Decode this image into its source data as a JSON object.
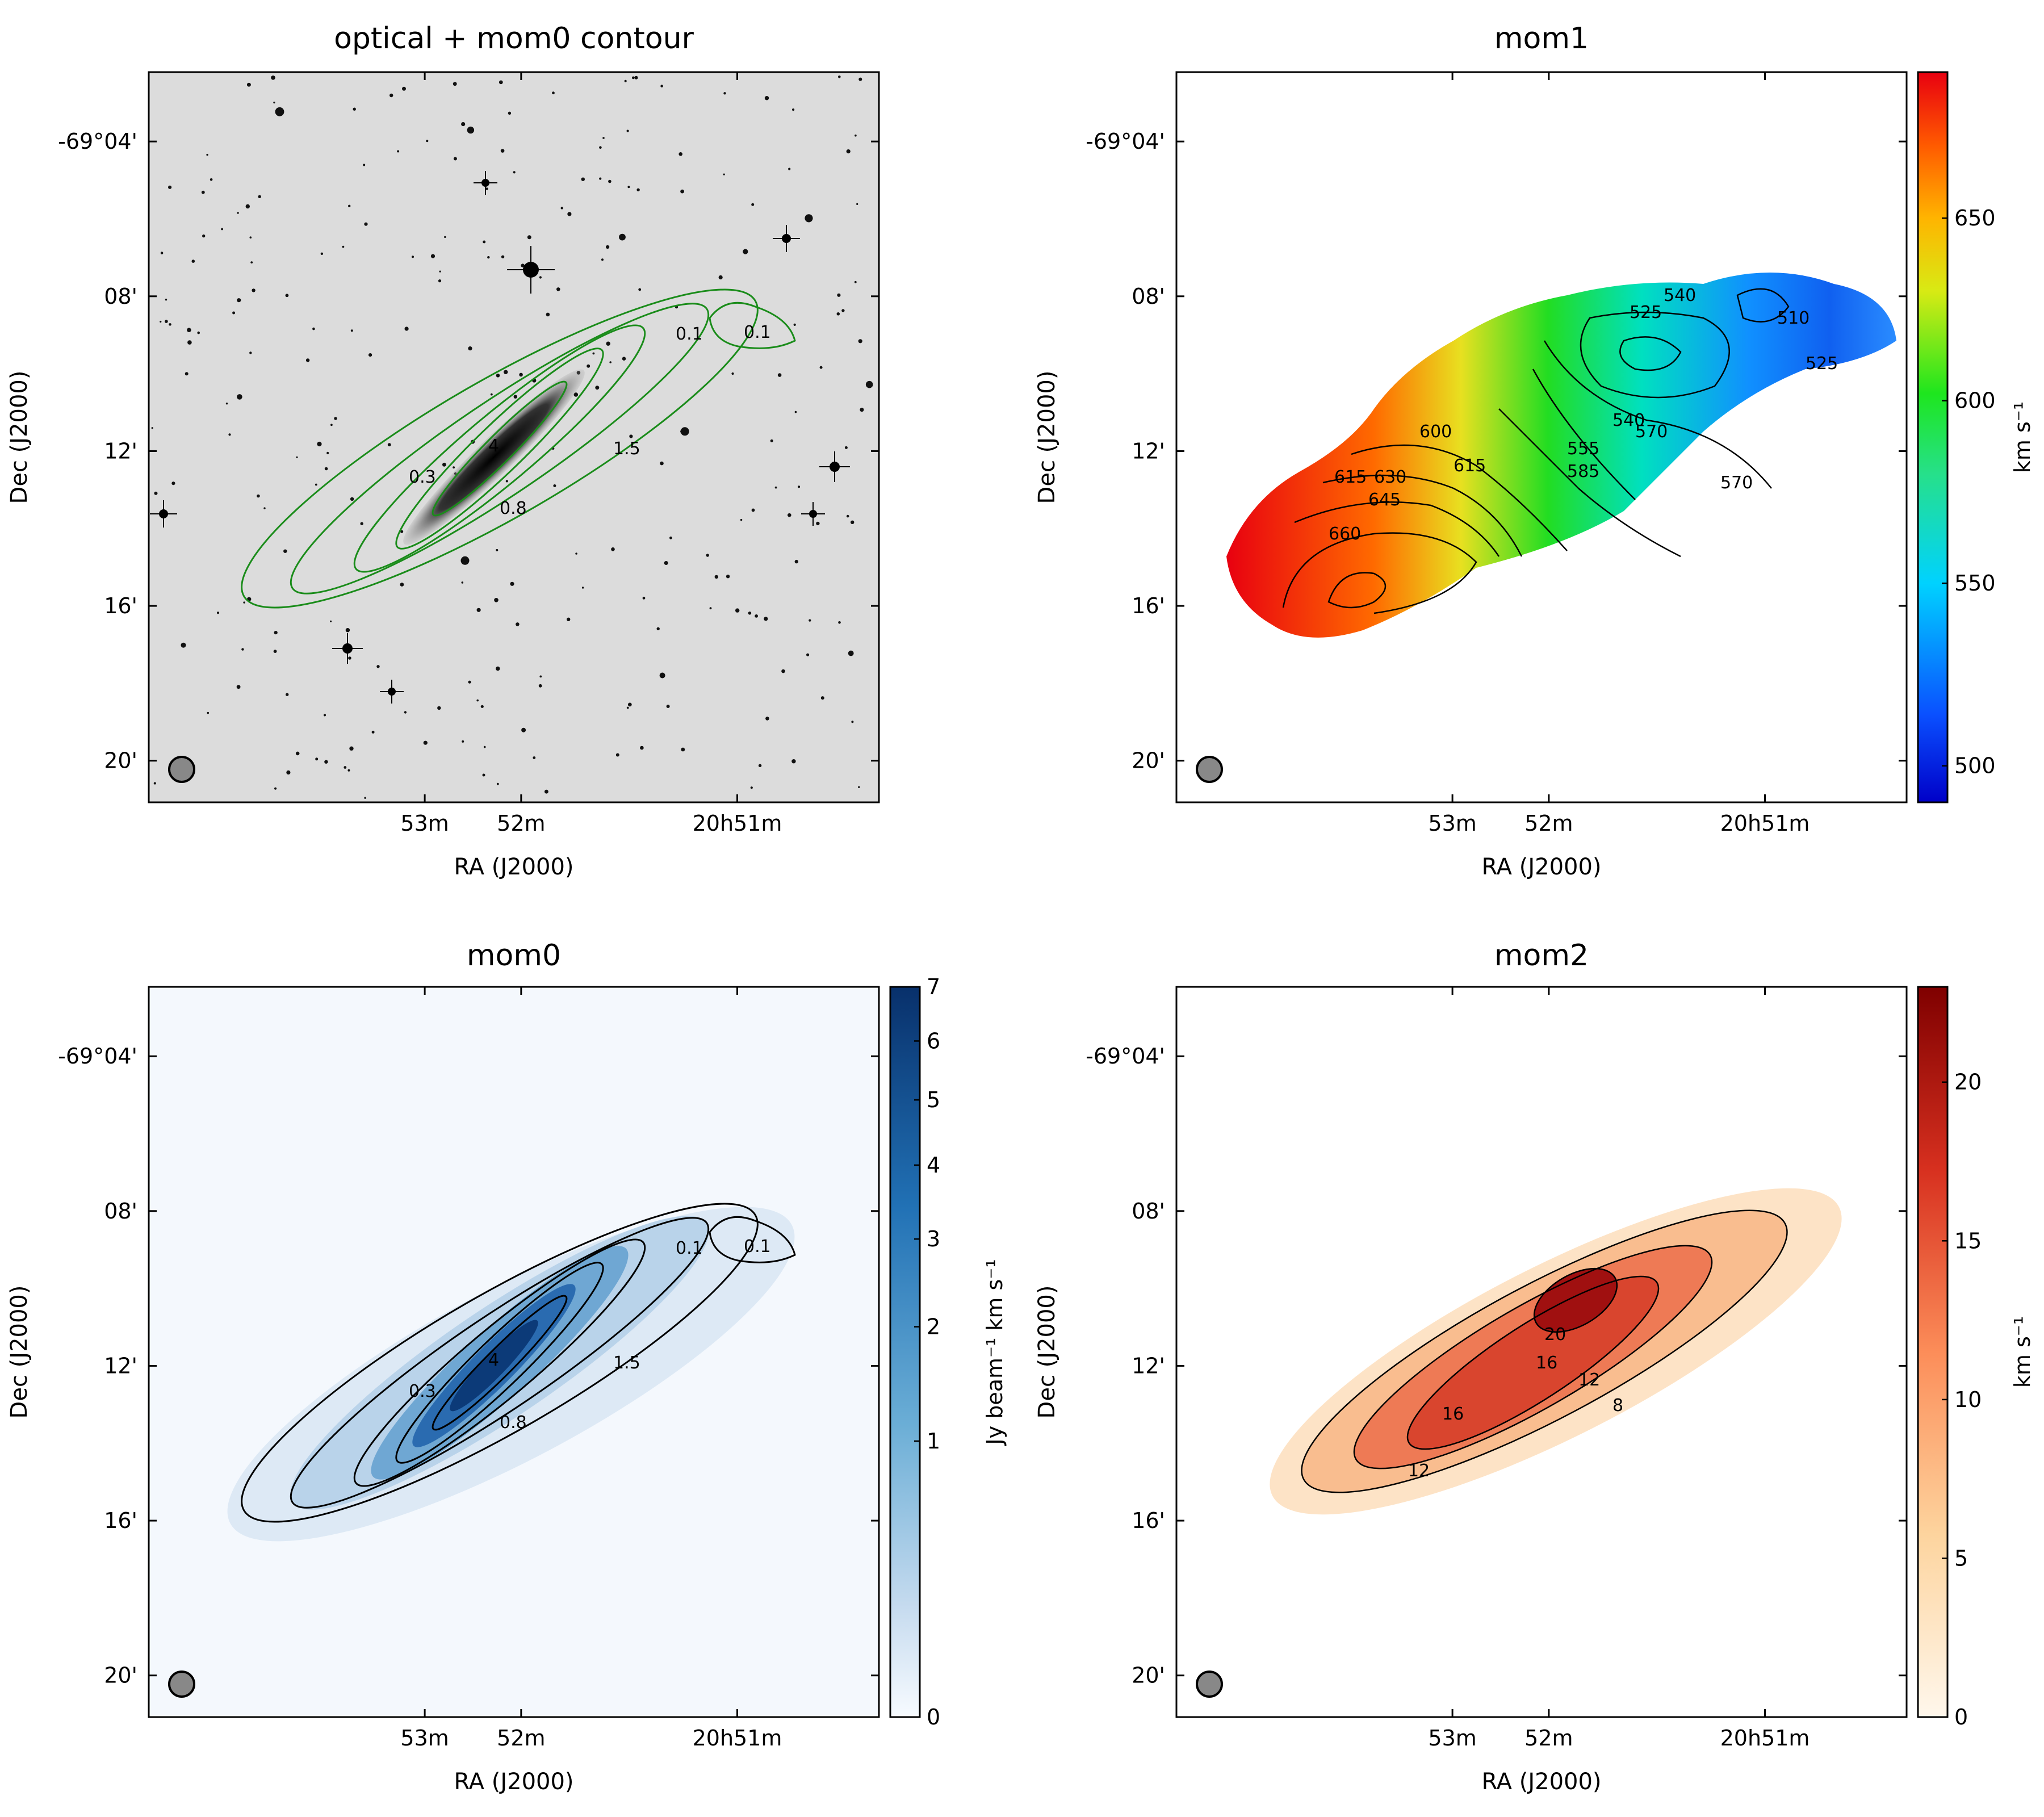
{
  "figure": {
    "panels": [
      {
        "id": "optical",
        "title": "optical + mom0 contour",
        "xlabel": "RA (J2000)",
        "ylabel": "Dec (J2000)",
        "xticks": [
          "53m",
          "52m",
          "20h51m"
        ],
        "yticks": [
          "-69°04'",
          "08'",
          "12'",
          "16'",
          "20'"
        ],
        "contour_color": "#1a8c1a",
        "contour_labels": [
          "0.1",
          "0.1",
          "0.3",
          "4",
          "0.8",
          "1.5"
        ]
      },
      {
        "id": "mom1",
        "title": "mom1",
        "xlabel": "RA (J2000)",
        "ylabel": "Dec (J2000)",
        "xticks": [
          "53m",
          "52m",
          "20h51m"
        ],
        "yticks": [
          "-69°04'",
          "08'",
          "12'",
          "16'",
          "20'"
        ],
        "colorbar": {
          "label": "km s⁻¹",
          "ticks": [
            "500",
            "550",
            "600",
            "650"
          ],
          "range": [
            490,
            690
          ],
          "cmap": "jet"
        },
        "contour_labels": [
          "510",
          "525",
          "540",
          "525",
          "540",
          "555",
          "570",
          "570",
          "585",
          "600",
          "615",
          "615",
          "630",
          "645",
          "660"
        ]
      },
      {
        "id": "mom0",
        "title": "mom0",
        "xlabel": "RA (J2000)",
        "ylabel": "Dec (J2000)",
        "xticks": [
          "53m",
          "52m",
          "20h51m"
        ],
        "yticks": [
          "-69°04'",
          "08'",
          "12'",
          "16'",
          "20'"
        ],
        "colorbar": {
          "label": "Jy beam⁻¹ km s⁻¹",
          "ticks": [
            "0",
            "1",
            "2",
            "3",
            "4",
            "5",
            "6",
            "7"
          ],
          "range": [
            0,
            7
          ],
          "cmap": "blues"
        },
        "contour_labels": [
          "0.1",
          "0.1",
          "0.3",
          "4",
          "0.8",
          "1.5"
        ]
      },
      {
        "id": "mom2",
        "title": "mom2",
        "xlabel": "RA (J2000)",
        "ylabel": "Dec (J2000)",
        "xticks": [
          "53m",
          "52m",
          "20h51m"
        ],
        "yticks": [
          "-69°04'",
          "08'",
          "12'",
          "16'",
          "20'"
        ],
        "colorbar": {
          "label": "km s⁻¹",
          "ticks": [
            "0",
            "5",
            "10",
            "15",
            "20"
          ],
          "range": [
            0,
            23
          ],
          "cmap": "orrd"
        },
        "contour_labels": [
          "20",
          "16",
          "12",
          "8",
          "16",
          "12"
        ]
      }
    ]
  },
  "chart_data": [
    {
      "type": "heatmap",
      "title": "optical + mom0 contour",
      "xlabel": "RA (J2000)",
      "ylabel": "Dec (J2000)",
      "x_tick_labels": [
        "53m",
        "52m",
        "20h51m"
      ],
      "y_tick_labels": [
        "-69°04'",
        "08'",
        "12'",
        "16'",
        "20'"
      ],
      "contour_levels": [
        0.1,
        0.3,
        0.8,
        1.5,
        4
      ]
    },
    {
      "type": "heatmap",
      "title": "mom1",
      "xlabel": "RA (J2000)",
      "ylabel": "Dec (J2000)",
      "x_tick_labels": [
        "53m",
        "52m",
        "20h51m"
      ],
      "y_tick_labels": [
        "-69°04'",
        "08'",
        "12'",
        "16'",
        "20'"
      ],
      "colorbar_label": "km s⁻¹",
      "colorbar_ticks": [
        500,
        550,
        600,
        650
      ],
      "value_range": [
        490,
        690
      ],
      "contour_levels": [
        510,
        525,
        540,
        555,
        570,
        585,
        600,
        615,
        630,
        645,
        660
      ]
    },
    {
      "type": "heatmap",
      "title": "mom0",
      "xlabel": "RA (J2000)",
      "ylabel": "Dec (J2000)",
      "x_tick_labels": [
        "53m",
        "52m",
        "20h51m"
      ],
      "y_tick_labels": [
        "-69°04'",
        "08'",
        "12'",
        "16'",
        "20'"
      ],
      "colorbar_label": "Jy beam⁻¹ km s⁻¹",
      "colorbar_ticks": [
        0,
        1,
        2,
        3,
        4,
        5,
        6,
        7
      ],
      "value_range": [
        0,
        7
      ],
      "contour_levels": [
        0.1,
        0.3,
        0.8,
        1.5,
        4
      ]
    },
    {
      "type": "heatmap",
      "title": "mom2",
      "xlabel": "RA (J2000)",
      "ylabel": "Dec (J2000)",
      "x_tick_labels": [
        "53m",
        "52m",
        "20h51m"
      ],
      "y_tick_labels": [
        "-69°04'",
        "08'",
        "12'",
        "16'",
        "20'"
      ],
      "colorbar_label": "km s⁻¹",
      "colorbar_ticks": [
        0,
        5,
        10,
        15,
        20
      ],
      "value_range": [
        0,
        23
      ],
      "contour_levels": [
        8,
        12,
        16,
        20
      ]
    }
  ]
}
